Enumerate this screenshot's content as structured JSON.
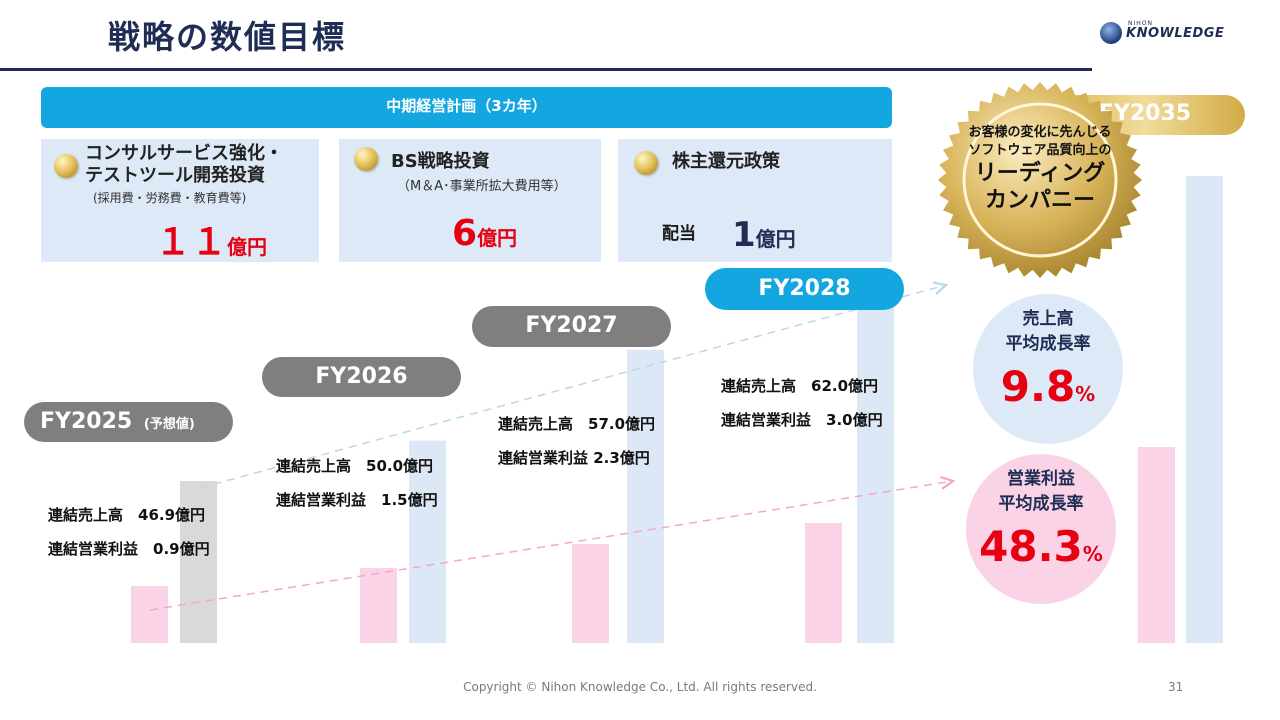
{
  "header": {
    "title": "戦略の数値目標",
    "logo_small": "NIHON",
    "logo_main": "KNOWLEDGE"
  },
  "plan": {
    "header": "中期経営計画（3カ年）",
    "panels": [
      {
        "title_line1": "コンサルサービス強化・",
        "title_line2": "テストツール開発投資",
        "subtitle": "(採用費・労務費・教育費等)",
        "prefix": "",
        "amount": "１１",
        "unit": "億円"
      },
      {
        "title_line1": "BS戦略投資",
        "title_line2": "",
        "subtitle": "（M＆A･事業所拡大費用等）",
        "prefix": "",
        "amount": "6",
        "unit": "億円"
      },
      {
        "title_line1": "株主還元政策",
        "title_line2": "",
        "subtitle": "",
        "prefix": "配当",
        "amount": "1",
        "unit": "億円"
      }
    ]
  },
  "badge": {
    "line1": "お客様の変化に先んじる",
    "line2": "ソフトウェア品質向上の",
    "line3": "リーディング",
    "line4": "カンパニー"
  },
  "growth": {
    "sales_label_1": "売上高",
    "sales_label_2": "平均成長率",
    "sales_value": "9.8",
    "sales_unit": "%",
    "profit_label_1": "営業利益",
    "profit_label_2": "平均成長率",
    "profit_value": "48.3",
    "profit_unit": "%"
  },
  "chart_data": {
    "type": "bar",
    "categories": [
      "FY2025",
      "FY2026",
      "FY2027",
      "FY2028",
      "FY2035"
    ],
    "category_notes": [
      "(予想値)",
      "",
      "",
      "",
      ""
    ],
    "series": [
      {
        "name": "連結売上高",
        "values": [
          46.9,
          50.0,
          57.0,
          62.0,
          null
        ]
      },
      {
        "name": "連結営業利益",
        "values": [
          0.9,
          1.5,
          2.3,
          3.0,
          null
        ]
      }
    ],
    "labels": [
      {
        "sales": "連結売上高　46.9億円",
        "profit": "連結営業利益　0.9億円"
      },
      {
        "sales": "連結売上高　50.0億円",
        "profit": "連結営業利益　1.5億円"
      },
      {
        "sales": "連結売上高　57.0億円",
        "profit": "連結営業利益 2.3億円"
      },
      {
        "sales": "連結売上高　62.0億円",
        "profit": "連結営業利益　3.0億円"
      }
    ],
    "colors": {
      "sales": "#dce8f5",
      "sales_forecast": "#d9d9d9",
      "profit": "#fbd3e6",
      "sales_trend": "#b8d8ee",
      "profit_trend": "#f4a7c8",
      "highlight": "#e60012"
    }
  },
  "footer": {
    "copyright": "Copyright © Nihon Knowledge Co., Ltd. All rights reserved.",
    "page": "31"
  }
}
